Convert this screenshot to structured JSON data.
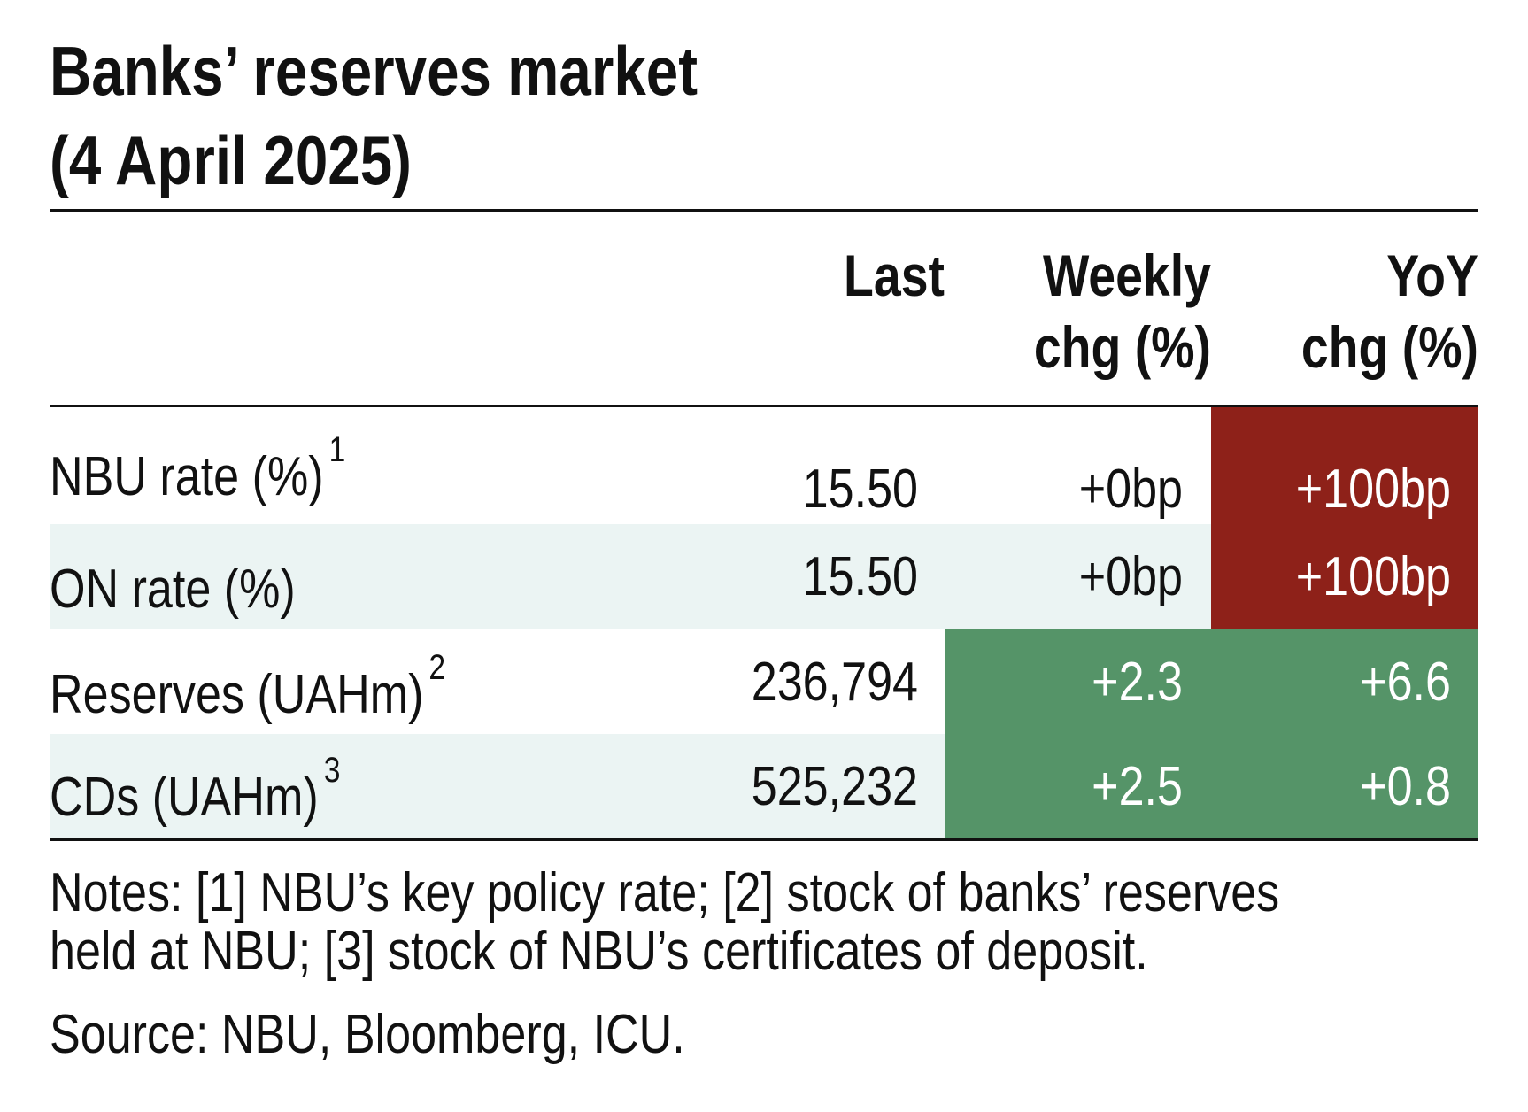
{
  "title": [
    "Banks’ reserves market",
    "(4 April 2025)"
  ],
  "table": {
    "columns": [
      [
        "Last"
      ],
      [
        "Weekly",
        "chg (%)"
      ],
      [
        "YoY",
        "chg (%)"
      ]
    ],
    "rows": [
      {
        "label": "NBU rate (%)",
        "note": "1",
        "shaded": false,
        "cells": [
          "15.50",
          "+0bp",
          "+100bp"
        ],
        "fills": [
          null,
          null,
          "#8e2119"
        ]
      },
      {
        "label": "ON rate (%)",
        "note": null,
        "shaded": true,
        "cells": [
          "15.50",
          "+0bp",
          "+100bp"
        ],
        "fills": [
          null,
          null,
          "#8e2119"
        ]
      },
      {
        "label": "Reserves (UAHm)",
        "note": "2",
        "shaded": false,
        "cells": [
          "236,794",
          "+2.3",
          "+6.6"
        ],
        "fills": [
          null,
          "#559468",
          "#559468"
        ]
      },
      {
        "label": "CDs (UAHm)",
        "note": "3",
        "shaded": true,
        "cells": [
          "525,232",
          "+2.5",
          "+0.8"
        ],
        "fills": [
          null,
          "#559468",
          "#559468"
        ]
      }
    ]
  },
  "notes": [
    "Notes: [1] NBU’s key policy rate; [2] stock of banks’ reserves",
    "held at NBU; [3] stock of NBU’s certificates of deposit."
  ],
  "source": "Source: NBU, Bloomberg, ICU."
}
